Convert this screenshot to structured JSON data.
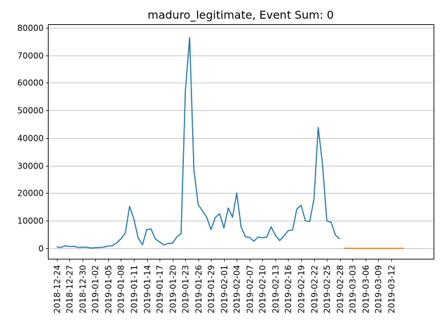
{
  "chart_data": {
    "type": "line",
    "title": "maduro_legitimate, Event Sum: 0",
    "xlabel": "",
    "ylabel": "",
    "ylim": [
      -3800,
      81000
    ],
    "y_ticks": [
      0,
      10000,
      20000,
      30000,
      40000,
      50000,
      60000,
      70000,
      80000
    ],
    "grid": "horizontal",
    "legend": "none",
    "x_start": "2018-12-24",
    "x_range_days": [
      -1.9,
      87.9
    ],
    "x_ticks": [
      "2018-12-24",
      "2018-12-27",
      "2018-12-30",
      "2019-01-02",
      "2019-01-05",
      "2019-01-08",
      "2019-01-11",
      "2019-01-14",
      "2019-01-17",
      "2019-01-20",
      "2019-01-23",
      "2019-01-26",
      "2019-01-29",
      "2019-02-01",
      "2019-02-04",
      "2019-02-07",
      "2019-02-10",
      "2019-02-13",
      "2019-02-16",
      "2019-02-19",
      "2019-02-22",
      "2019-02-25",
      "2019-02-28",
      "2019-03-03",
      "2019-03-06",
      "2019-03-09",
      "2019-03-12"
    ],
    "series": [
      {
        "name": "",
        "color": "#1f77b4",
        "x": [
          "2018-12-24",
          "2018-12-25",
          "2018-12-26",
          "2018-12-27",
          "2018-12-28",
          "2018-12-29",
          "2018-12-30",
          "2018-12-31",
          "2019-01-01",
          "2019-01-02",
          "2019-01-03",
          "2019-01-04",
          "2019-01-05",
          "2019-01-06",
          "2019-01-07",
          "2019-01-08",
          "2019-01-09",
          "2019-01-10",
          "2019-01-11",
          "2019-01-12",
          "2019-01-13",
          "2019-01-14",
          "2019-01-15",
          "2019-01-16",
          "2019-01-17",
          "2019-01-18",
          "2019-01-19",
          "2019-01-20",
          "2019-01-21",
          "2019-01-22",
          "2019-01-23",
          "2019-01-24",
          "2019-01-25",
          "2019-01-26",
          "2019-01-27",
          "2019-01-28",
          "2019-01-29",
          "2019-01-30",
          "2019-01-31",
          "2019-02-01",
          "2019-02-02",
          "2019-02-03",
          "2019-02-04",
          "2019-02-05",
          "2019-02-06",
          "2019-02-07",
          "2019-02-08",
          "2019-02-09",
          "2019-02-10",
          "2019-02-11",
          "2019-02-12",
          "2019-02-13",
          "2019-02-14",
          "2019-02-15",
          "2019-02-16",
          "2019-02-17",
          "2019-02-18",
          "2019-02-19",
          "2019-02-20",
          "2019-02-21",
          "2019-02-22",
          "2019-02-23",
          "2019-02-24",
          "2019-02-25",
          "2019-02-26",
          "2019-02-27",
          "2019-02-28"
        ],
        "values": [
          500,
          300,
          900,
          600,
          700,
          300,
          400,
          400,
          100,
          200,
          300,
          400,
          800,
          900,
          2000,
          3500,
          5500,
          15200,
          10600,
          3700,
          1300,
          6800,
          7000,
          3400,
          2300,
          1200,
          1800,
          1800,
          4100,
          5300,
          57000,
          76500,
          28500,
          15800,
          13600,
          11200,
          6800,
          11200,
          12500,
          7400,
          14600,
          11300,
          20000,
          7800,
          4200,
          3900,
          2600,
          4100,
          3800,
          4100,
          7800,
          4700,
          2800,
          4500,
          6400,
          6600,
          14200,
          15600,
          10000,
          9700,
          17900,
          43800,
          30400,
          10000,
          9400,
          4800,
          3400
        ]
      },
      {
        "name": "",
        "color": "#ff7f0e",
        "x": [
          "2019-03-01",
          "2019-03-15"
        ],
        "values": [
          0,
          0
        ]
      }
    ]
  }
}
